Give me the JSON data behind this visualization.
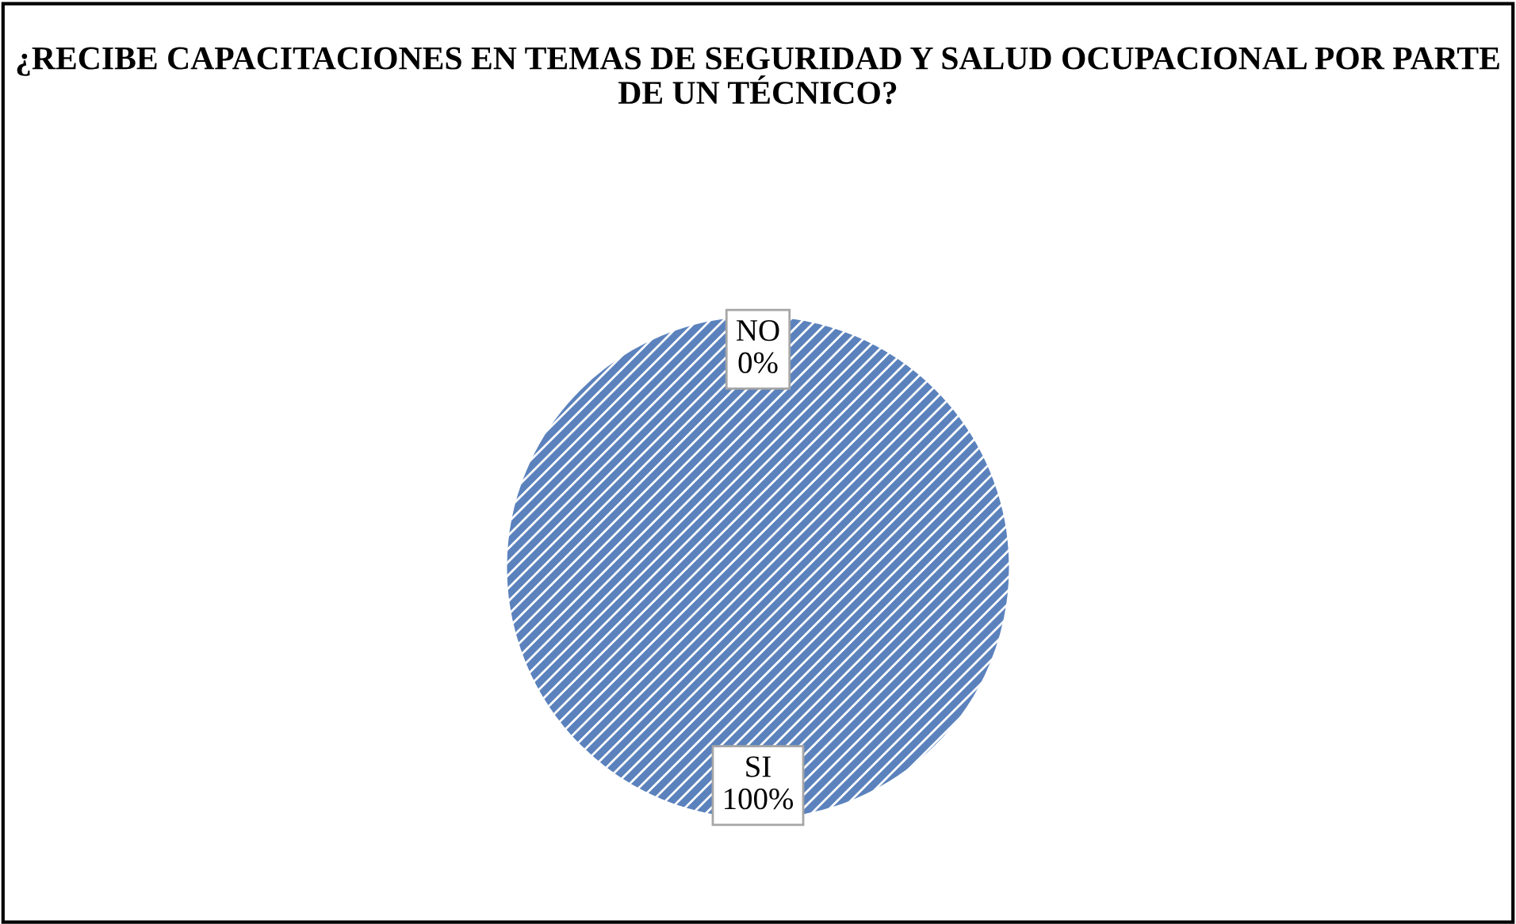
{
  "chart_data": {
    "type": "pie",
    "title": "¿RECIBE CAPACITACIONES EN TEMAS DE SEGURIDAD Y SALUD OCUPACIONAL POR PARTE DE UN TÉCNICO?",
    "categories": [
      "NO",
      "SI"
    ],
    "values": [
      0,
      100
    ],
    "colors": [
      "#4f81bd",
      "#5b82bd"
    ],
    "value_labels": [
      "0%",
      "100%"
    ],
    "legend": false
  }
}
